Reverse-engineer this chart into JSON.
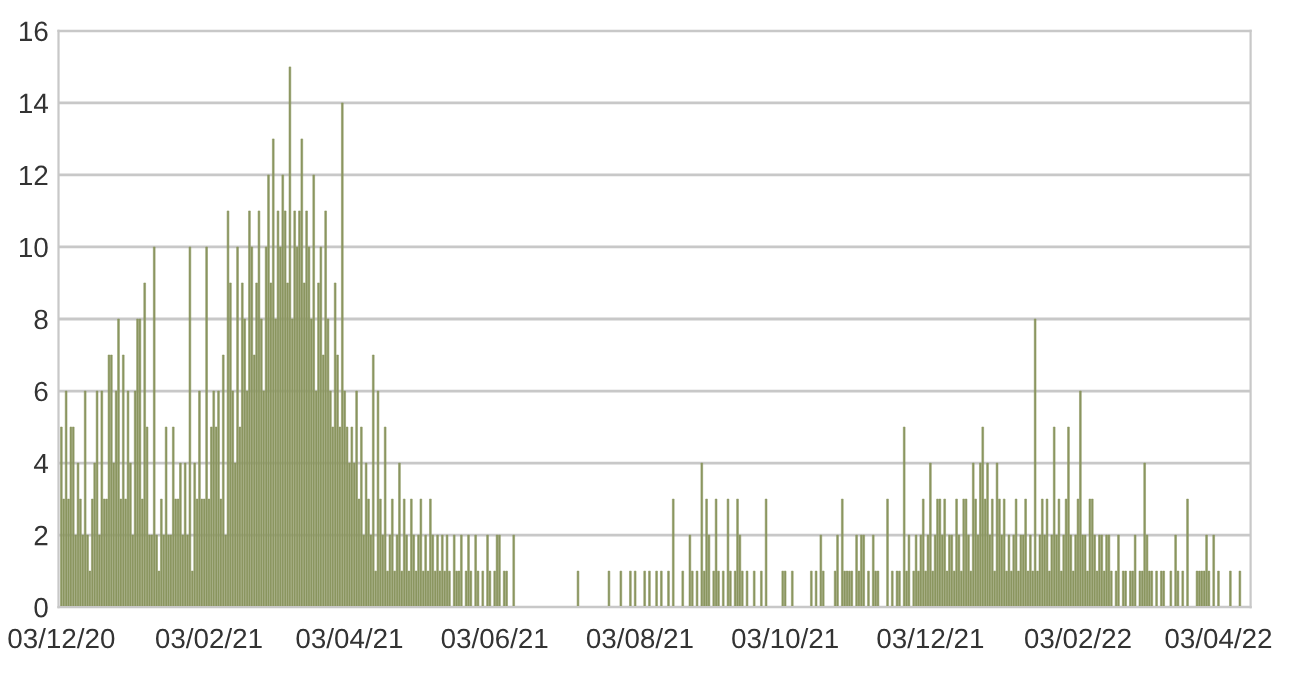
{
  "chart_data": {
    "type": "bar",
    "categories": [
      "03/12/20",
      null,
      null,
      null,
      null,
      null,
      null,
      null,
      null,
      null,
      null,
      null,
      null,
      null,
      null,
      null,
      null,
      null,
      null,
      null,
      null,
      null,
      null,
      null,
      null,
      null,
      null,
      null,
      null,
      null,
      null,
      null,
      null,
      null,
      null,
      null,
      null,
      null,
      null,
      null,
      null,
      null,
      null,
      null,
      null,
      null,
      null,
      null,
      null,
      null,
      null,
      null,
      null,
      null,
      null,
      null,
      null,
      null,
      null,
      null,
      null,
      null,
      "03/02/21",
      null,
      null,
      null,
      null,
      null,
      null,
      null,
      null,
      null,
      null,
      null,
      null,
      null,
      null,
      null,
      null,
      null,
      null,
      null,
      null,
      null,
      null,
      null,
      null,
      null,
      null,
      null,
      null,
      null,
      null,
      null,
      null,
      null,
      null,
      null,
      null,
      null,
      null,
      null,
      null,
      null,
      null,
      null,
      null,
      null,
      null,
      null,
      null,
      null,
      null,
      null,
      null,
      null,
      null,
      null,
      null,
      null,
      null,
      "03/04/21",
      null,
      null,
      null,
      null,
      null,
      null,
      null,
      null,
      null,
      null,
      null,
      null,
      null,
      null,
      null,
      null,
      null,
      null,
      null,
      null,
      null,
      null,
      null,
      null,
      null,
      null,
      null,
      null,
      null,
      null,
      null,
      null,
      null,
      null,
      null,
      null,
      null,
      null,
      null,
      null,
      null,
      null,
      null,
      null,
      null,
      null,
      null,
      null,
      null,
      null,
      null,
      null,
      null,
      null,
      null,
      null,
      null,
      null,
      null,
      null,
      "03/06/21",
      null,
      null,
      null,
      null,
      null,
      null,
      null,
      null,
      null,
      null,
      null,
      null,
      null,
      null,
      null,
      null,
      null,
      null,
      null,
      null,
      null,
      null,
      null,
      null,
      null,
      null,
      null,
      null,
      null,
      null,
      null,
      null,
      null,
      null,
      null,
      null,
      null,
      null,
      null,
      null,
      null,
      null,
      null,
      null,
      null,
      null,
      null,
      null,
      null,
      null,
      null,
      null,
      null,
      null,
      null,
      null,
      null,
      null,
      null,
      null,
      "03/08/21",
      null,
      null,
      null,
      null,
      null,
      null,
      null,
      null,
      null,
      null,
      null,
      null,
      null,
      null,
      null,
      null,
      null,
      null,
      null,
      null,
      null,
      null,
      null,
      null,
      null,
      null,
      null,
      null,
      null,
      null,
      null,
      null,
      null,
      null,
      null,
      null,
      null,
      null,
      null,
      null,
      null,
      null,
      null,
      null,
      null,
      null,
      null,
      null,
      null,
      null,
      null,
      null,
      null,
      null,
      null,
      null,
      null,
      null,
      null,
      null,
      "03/10/21",
      null,
      null,
      null,
      null,
      null,
      null,
      null,
      null,
      null,
      null,
      null,
      null,
      null,
      null,
      null,
      null,
      null,
      null,
      null,
      null,
      null,
      null,
      null,
      null,
      null,
      null,
      null,
      null,
      null,
      null,
      null,
      null,
      null,
      null,
      null,
      null,
      null,
      null,
      null,
      null,
      null,
      null,
      null,
      null,
      null,
      null,
      null,
      null,
      null,
      null,
      null,
      null,
      null,
      null,
      null,
      null,
      null,
      null,
      null,
      null,
      "03/12/21",
      null,
      null,
      null,
      null,
      null,
      null,
      null,
      null,
      null,
      null,
      null,
      null,
      null,
      null,
      null,
      null,
      null,
      null,
      null,
      null,
      null,
      null,
      null,
      null,
      null,
      null,
      null,
      null,
      null,
      null,
      null,
      null,
      null,
      null,
      null,
      null,
      null,
      null,
      null,
      null,
      null,
      null,
      null,
      null,
      null,
      null,
      null,
      null,
      null,
      null,
      null,
      null,
      null,
      null,
      null,
      null,
      null,
      null,
      null,
      null,
      null,
      "03/02/22",
      null,
      null,
      null,
      null,
      null,
      null,
      null,
      null,
      null,
      null,
      null,
      null,
      null,
      null,
      null,
      null,
      null,
      null,
      null,
      null,
      null,
      null,
      null,
      null,
      null,
      null,
      null,
      null,
      null,
      null,
      null,
      null,
      null,
      null,
      null,
      null,
      null,
      null,
      null,
      null,
      null,
      null,
      null,
      null,
      null,
      null,
      null,
      null,
      null,
      null,
      null,
      null,
      null,
      null,
      null,
      null,
      null,
      null,
      "03/04/22",
      null,
      null,
      null,
      null,
      null,
      null,
      null,
      null,
      null,
      null,
      null,
      null,
      null
    ],
    "values": [
      5,
      3,
      6,
      3,
      5,
      5,
      2,
      4,
      3,
      2,
      6,
      2,
      1,
      3,
      4,
      6,
      2,
      6,
      3,
      3,
      7,
      7,
      4,
      6,
      8,
      3,
      7,
      3,
      6,
      4,
      2,
      6,
      8,
      8,
      3,
      9,
      5,
      2,
      2,
      10,
      2,
      1,
      3,
      2,
      5,
      2,
      2,
      5,
      3,
      3,
      4,
      2,
      4,
      2,
      10,
      1,
      4,
      3,
      6,
      3,
      3,
      10,
      3,
      5,
      6,
      5,
      6,
      3,
      7,
      2,
      11,
      9,
      6,
      4,
      10,
      5,
      9,
      8,
      6,
      11,
      10,
      7,
      9,
      11,
      8,
      6,
      10,
      12,
      9,
      13,
      8,
      11,
      10,
      12,
      11,
      9,
      15,
      8,
      11,
      10,
      11,
      13,
      9,
      11,
      10,
      8,
      12,
      6,
      9,
      10,
      7,
      11,
      8,
      6,
      5,
      9,
      7,
      5,
      14,
      6,
      5,
      4,
      5,
      4,
      6,
      3,
      5,
      2,
      4,
      3,
      2,
      7,
      1,
      6,
      3,
      2,
      5,
      1,
      2,
      3,
      1,
      2,
      4,
      1,
      3,
      2,
      1,
      3,
      2,
      1,
      2,
      3,
      1,
      2,
      1,
      3,
      2,
      1,
      2,
      1,
      2,
      1,
      2,
      1,
      0,
      2,
      1,
      1,
      2,
      0,
      1,
      2,
      1,
      0,
      2,
      1,
      0,
      1,
      0,
      2,
      1,
      0,
      1,
      2,
      2,
      0,
      1,
      1,
      0,
      0,
      2,
      0,
      0,
      0,
      0,
      0,
      0,
      0,
      0,
      0,
      0,
      0,
      0,
      0,
      0,
      0,
      0,
      0,
      0,
      0,
      0,
      0,
      0,
      0,
      0,
      0,
      0,
      1,
      0,
      0,
      0,
      0,
      0,
      0,
      0,
      0,
      0,
      0,
      0,
      0,
      1,
      0,
      0,
      0,
      0,
      1,
      0,
      0,
      0,
      1,
      0,
      1,
      0,
      0,
      0,
      1,
      0,
      1,
      0,
      0,
      1,
      0,
      1,
      0,
      0,
      1,
      0,
      3,
      0,
      0,
      0,
      1,
      0,
      0,
      2,
      1,
      0,
      1,
      0,
      4,
      1,
      3,
      2,
      0,
      1,
      3,
      1,
      0,
      1,
      0,
      3,
      1,
      0,
      1,
      3,
      2,
      1,
      0,
      1,
      0,
      0,
      1,
      0,
      0,
      1,
      0,
      3,
      0,
      0,
      0,
      0,
      0,
      0,
      1,
      1,
      0,
      0,
      1,
      0,
      0,
      0,
      0,
      0,
      0,
      0,
      1,
      0,
      1,
      0,
      2,
      1,
      0,
      0,
      0,
      0,
      1,
      2,
      0,
      3,
      1,
      1,
      1,
      1,
      0,
      2,
      1,
      2,
      2,
      0,
      1,
      0,
      2,
      1,
      1,
      0,
      0,
      0,
      3,
      0,
      1,
      0,
      1,
      1,
      0,
      5,
      1,
      2,
      0,
      1,
      2,
      1,
      2,
      3,
      1,
      2,
      4,
      1,
      2,
      3,
      3,
      2,
      3,
      1,
      2,
      2,
      1,
      3,
      2,
      1,
      3,
      3,
      2,
      1,
      4,
      3,
      2,
      4,
      5,
      3,
      4,
      2,
      3,
      1,
      4,
      3,
      2,
      3,
      1,
      2,
      1,
      2,
      3,
      1,
      2,
      2,
      3,
      1,
      2,
      1,
      8,
      1,
      2,
      3,
      2,
      3,
      1,
      2,
      5,
      2,
      3,
      1,
      2,
      3,
      5,
      2,
      1,
      2,
      3,
      6,
      2,
      2,
      1,
      3,
      3,
      2,
      1,
      2,
      2,
      1,
      2,
      2,
      1,
      0,
      1,
      2,
      0,
      1,
      1,
      0,
      1,
      1,
      2,
      0,
      1,
      1,
      4,
      2,
      1,
      1,
      0,
      1,
      0,
      1,
      1,
      0,
      0,
      1,
      0,
      2,
      1,
      0,
      1,
      0,
      3,
      0,
      0,
      0,
      1,
      1,
      1,
      1,
      2,
      1,
      0,
      2,
      0,
      1,
      0,
      0,
      0,
      0,
      1,
      0,
      0,
      0,
      1,
      0,
      0,
      0,
      0
    ],
    "color": "#8b9660",
    "ylim": [
      0,
      16
    ],
    "yticks": [
      0,
      2,
      4,
      6,
      8,
      10,
      12,
      14,
      16
    ],
    "grid": "y",
    "legend": false
  }
}
